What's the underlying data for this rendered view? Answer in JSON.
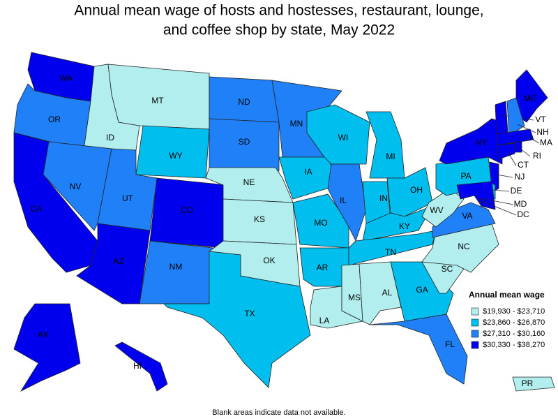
{
  "title": [
    "Annual mean wage of hosts and hostesses, restaurant, lounge,",
    "and coffee shop by state, May 2022"
  ],
  "legend": {
    "title": "Annual mean wage",
    "items": [
      {
        "label": "$19,930 - $23,710",
        "color": "#b2eeee"
      },
      {
        "label": "$23,860 - $26,870",
        "color": "#00bfee"
      },
      {
        "label": "$27,310 - $30,160",
        "color": "#2080f8"
      },
      {
        "label": "$30,330 - $38,270",
        "color": "#0000ee"
      }
    ]
  },
  "states": [
    {
      "abbr": "WA",
      "color": "#0000ee"
    },
    {
      "abbr": "OR",
      "color": "#2080f8"
    },
    {
      "abbr": "CA",
      "color": "#0000ee"
    },
    {
      "abbr": "ID",
      "color": "#b2eeee"
    },
    {
      "abbr": "MT",
      "color": "#b2eeee"
    },
    {
      "abbr": "WY",
      "color": "#00bfee"
    },
    {
      "abbr": "NV",
      "color": "#2080f8"
    },
    {
      "abbr": "UT",
      "color": "#2080f8"
    },
    {
      "abbr": "AZ",
      "color": "#0000ee"
    },
    {
      "abbr": "CO",
      "color": "#0000ee"
    },
    {
      "abbr": "NM",
      "color": "#2080f8"
    },
    {
      "abbr": "ND",
      "color": "#2080f8"
    },
    {
      "abbr": "SD",
      "color": "#2080f8"
    },
    {
      "abbr": "NE",
      "color": "#b2eeee"
    },
    {
      "abbr": "KS",
      "color": "#b2eeee"
    },
    {
      "abbr": "OK",
      "color": "#b2eeee"
    },
    {
      "abbr": "TX",
      "color": "#00bfee"
    },
    {
      "abbr": "MN",
      "color": "#2080f8"
    },
    {
      "abbr": "IA",
      "color": "#00bfee"
    },
    {
      "abbr": "MO",
      "color": "#00bfee"
    },
    {
      "abbr": "AR",
      "color": "#00bfee"
    },
    {
      "abbr": "LA",
      "color": "#b2eeee"
    },
    {
      "abbr": "WI",
      "color": "#00bfee"
    },
    {
      "abbr": "IL",
      "color": "#2080f8"
    },
    {
      "abbr": "MI",
      "color": "#00bfee"
    },
    {
      "abbr": "IN",
      "color": "#00bfee"
    },
    {
      "abbr": "OH",
      "color": "#00bfee"
    },
    {
      "abbr": "KY",
      "color": "#00bfee"
    },
    {
      "abbr": "TN",
      "color": "#00bfee"
    },
    {
      "abbr": "MS",
      "color": "#b2eeee"
    },
    {
      "abbr": "AL",
      "color": "#b2eeee"
    },
    {
      "abbr": "GA",
      "color": "#00bfee"
    },
    {
      "abbr": "FL",
      "color": "#2080f8"
    },
    {
      "abbr": "SC",
      "color": "#b2eeee"
    },
    {
      "abbr": "NC",
      "color": "#b2eeee"
    },
    {
      "abbr": "VA",
      "color": "#2080f8"
    },
    {
      "abbr": "WV",
      "color": "#b2eeee"
    },
    {
      "abbr": "PA",
      "color": "#00bfee"
    },
    {
      "abbr": "NY",
      "color": "#0000ee"
    },
    {
      "abbr": "ME",
      "color": "#0000ee"
    },
    {
      "abbr": "VT",
      "color": "#0000ee"
    },
    {
      "abbr": "NH",
      "color": "#2080f8"
    },
    {
      "abbr": "MA",
      "color": "#0000ee"
    },
    {
      "abbr": "CT",
      "color": "#0000ee"
    },
    {
      "abbr": "RI",
      "color": "#0000ee"
    },
    {
      "abbr": "NJ",
      "color": "#0000ee"
    },
    {
      "abbr": "DE",
      "color": "#00bfee"
    },
    {
      "abbr": "MD",
      "color": "#0000ee"
    },
    {
      "abbr": "DC",
      "color": "#0000ee"
    },
    {
      "abbr": "AK",
      "color": "#0000ee"
    },
    {
      "abbr": "HI",
      "color": "#0000ee"
    },
    {
      "abbr": "PR",
      "color": "#b2eeee"
    }
  ],
  "footnote": "Blank areas indicate data not available."
}
